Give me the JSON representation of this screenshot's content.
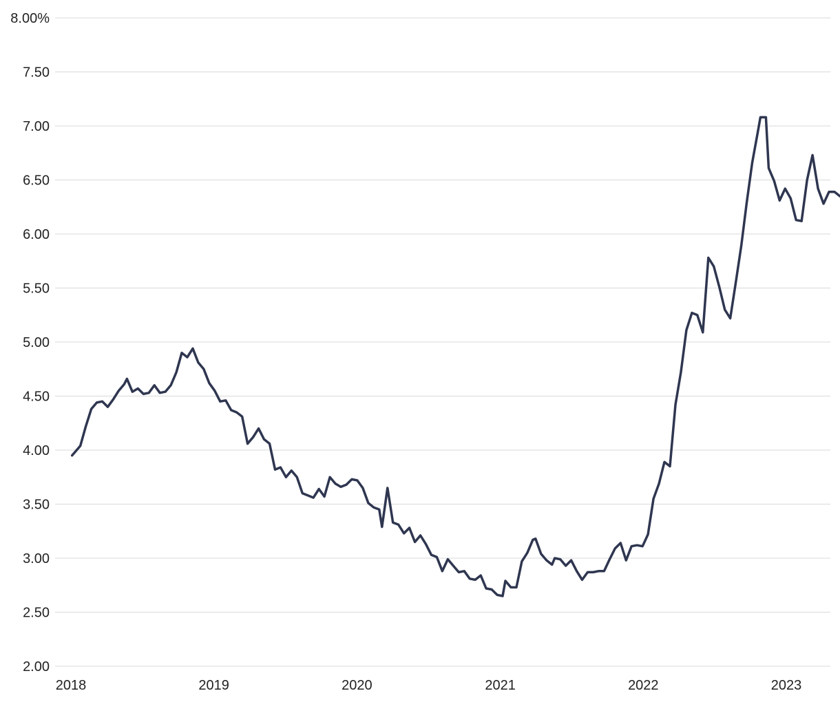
{
  "chart_data": {
    "type": "line",
    "title": "",
    "xlabel": "",
    "ylabel": "",
    "x_axis": {
      "type": "date",
      "range": [
        "2018-01-01",
        "2023-06-01"
      ],
      "ticks": [
        "2018",
        "2019",
        "2020",
        "2021",
        "2022",
        "2023"
      ]
    },
    "y_axis": {
      "range": [
        2.0,
        8.0
      ],
      "ticks": [
        2.0,
        2.5,
        3.0,
        3.5,
        4.0,
        4.5,
        5.0,
        5.5,
        6.0,
        6.5,
        7.0,
        7.5,
        8.0
      ],
      "tick_labels": [
        "2.00",
        "2.50",
        "3.00",
        "3.50",
        "4.00",
        "4.50",
        "5.00",
        "5.50",
        "6.00",
        "6.50",
        "7.00",
        "7.50",
        "8.00%"
      ]
    },
    "grid": "horizontal",
    "legend": "none",
    "series_color": "#2f3650",
    "series": [
      {
        "points": [
          [
            "2018-01-04",
            3.95
          ],
          [
            "2018-01-25",
            4.04
          ],
          [
            "2018-02-08",
            4.22
          ],
          [
            "2018-02-22",
            4.38
          ],
          [
            "2018-03-08",
            4.44
          ],
          [
            "2018-03-22",
            4.45
          ],
          [
            "2018-04-05",
            4.4
          ],
          [
            "2018-04-19",
            4.47
          ],
          [
            "2018-05-03",
            4.55
          ],
          [
            "2018-05-17",
            4.61
          ],
          [
            "2018-05-24",
            4.66
          ],
          [
            "2018-06-07",
            4.54
          ],
          [
            "2018-06-21",
            4.57
          ],
          [
            "2018-07-05",
            4.52
          ],
          [
            "2018-07-19",
            4.53
          ],
          [
            "2018-08-02",
            4.6
          ],
          [
            "2018-08-16",
            4.53
          ],
          [
            "2018-08-30",
            4.54
          ],
          [
            "2018-09-13",
            4.6
          ],
          [
            "2018-09-27",
            4.72
          ],
          [
            "2018-10-11",
            4.9
          ],
          [
            "2018-10-25",
            4.86
          ],
          [
            "2018-11-08",
            4.94
          ],
          [
            "2018-11-22",
            4.81
          ],
          [
            "2018-12-06",
            4.75
          ],
          [
            "2018-12-20",
            4.62
          ],
          [
            "2019-01-03",
            4.55
          ],
          [
            "2019-01-17",
            4.45
          ],
          [
            "2019-01-31",
            4.46
          ],
          [
            "2019-02-14",
            4.37
          ],
          [
            "2019-02-28",
            4.35
          ],
          [
            "2019-03-14",
            4.31
          ],
          [
            "2019-03-28",
            4.06
          ],
          [
            "2019-04-11",
            4.12
          ],
          [
            "2019-04-25",
            4.2
          ],
          [
            "2019-05-09",
            4.1
          ],
          [
            "2019-05-23",
            4.06
          ],
          [
            "2019-06-06",
            3.82
          ],
          [
            "2019-06-20",
            3.84
          ],
          [
            "2019-07-04",
            3.75
          ],
          [
            "2019-07-18",
            3.81
          ],
          [
            "2019-08-01",
            3.75
          ],
          [
            "2019-08-15",
            3.6
          ],
          [
            "2019-08-29",
            3.58
          ],
          [
            "2019-09-12",
            3.56
          ],
          [
            "2019-09-26",
            3.64
          ],
          [
            "2019-10-10",
            3.57
          ],
          [
            "2019-10-24",
            3.75
          ],
          [
            "2019-11-07",
            3.69
          ],
          [
            "2019-11-21",
            3.66
          ],
          [
            "2019-12-05",
            3.68
          ],
          [
            "2019-12-19",
            3.73
          ],
          [
            "2020-01-02",
            3.72
          ],
          [
            "2020-01-16",
            3.65
          ],
          [
            "2020-01-30",
            3.51
          ],
          [
            "2020-02-13",
            3.47
          ],
          [
            "2020-02-27",
            3.45
          ],
          [
            "2020-03-05",
            3.29
          ],
          [
            "2020-03-19",
            3.65
          ],
          [
            "2020-04-02",
            3.33
          ],
          [
            "2020-04-16",
            3.31
          ],
          [
            "2020-04-30",
            3.23
          ],
          [
            "2020-05-14",
            3.28
          ],
          [
            "2020-05-28",
            3.15
          ],
          [
            "2020-06-11",
            3.21
          ],
          [
            "2020-06-25",
            3.13
          ],
          [
            "2020-07-09",
            3.03
          ],
          [
            "2020-07-23",
            3.01
          ],
          [
            "2020-08-06",
            2.88
          ],
          [
            "2020-08-20",
            2.99
          ],
          [
            "2020-09-03",
            2.93
          ],
          [
            "2020-09-17",
            2.87
          ],
          [
            "2020-10-01",
            2.88
          ],
          [
            "2020-10-15",
            2.81
          ],
          [
            "2020-10-29",
            2.8
          ],
          [
            "2020-11-12",
            2.84
          ],
          [
            "2020-11-26",
            2.72
          ],
          [
            "2020-12-10",
            2.71
          ],
          [
            "2020-12-24",
            2.66
          ],
          [
            "2021-01-07",
            2.65
          ],
          [
            "2021-01-14",
            2.79
          ],
          [
            "2021-01-28",
            2.73
          ],
          [
            "2021-02-11",
            2.73
          ],
          [
            "2021-02-25",
            2.97
          ],
          [
            "2021-03-11",
            3.05
          ],
          [
            "2021-03-25",
            3.17
          ],
          [
            "2021-04-01",
            3.18
          ],
          [
            "2021-04-15",
            3.04
          ],
          [
            "2021-04-29",
            2.98
          ],
          [
            "2021-05-13",
            2.94
          ],
          [
            "2021-05-20",
            3.0
          ],
          [
            "2021-06-03",
            2.99
          ],
          [
            "2021-06-17",
            2.93
          ],
          [
            "2021-07-01",
            2.98
          ],
          [
            "2021-07-15",
            2.88
          ],
          [
            "2021-07-29",
            2.8
          ],
          [
            "2021-08-12",
            2.87
          ],
          [
            "2021-08-26",
            2.87
          ],
          [
            "2021-09-09",
            2.88
          ],
          [
            "2021-09-23",
            2.88
          ],
          [
            "2021-10-07",
            2.99
          ],
          [
            "2021-10-21",
            3.09
          ],
          [
            "2021-11-04",
            3.14
          ],
          [
            "2021-11-18",
            2.98
          ],
          [
            "2021-12-02",
            3.11
          ],
          [
            "2021-12-16",
            3.12
          ],
          [
            "2021-12-30",
            3.11
          ],
          [
            "2022-01-13",
            3.22
          ],
          [
            "2022-01-27",
            3.55
          ],
          [
            "2022-02-10",
            3.69
          ],
          [
            "2022-02-24",
            3.89
          ],
          [
            "2022-03-10",
            3.85
          ],
          [
            "2022-03-24",
            4.42
          ],
          [
            "2022-04-07",
            4.72
          ],
          [
            "2022-04-21",
            5.11
          ],
          [
            "2022-05-05",
            5.27
          ],
          [
            "2022-05-19",
            5.25
          ],
          [
            "2022-06-02",
            5.09
          ],
          [
            "2022-06-16",
            5.78
          ],
          [
            "2022-06-30",
            5.7
          ],
          [
            "2022-07-14",
            5.51
          ],
          [
            "2022-07-28",
            5.3
          ],
          [
            "2022-08-11",
            5.22
          ],
          [
            "2022-08-25",
            5.55
          ],
          [
            "2022-09-08",
            5.89
          ],
          [
            "2022-09-22",
            6.29
          ],
          [
            "2022-10-06",
            6.66
          ],
          [
            "2022-10-20",
            6.94
          ],
          [
            "2022-10-27",
            7.08
          ],
          [
            "2022-11-10",
            7.08
          ],
          [
            "2022-11-17",
            6.61
          ],
          [
            "2022-12-01",
            6.49
          ],
          [
            "2022-12-15",
            6.31
          ],
          [
            "2022-12-29",
            6.42
          ],
          [
            "2023-01-12",
            6.33
          ],
          [
            "2023-01-26",
            6.13
          ],
          [
            "2023-02-09",
            6.12
          ],
          [
            "2023-02-23",
            6.5
          ],
          [
            "2023-03-09",
            6.73
          ],
          [
            "2023-03-23",
            6.42
          ],
          [
            "2023-04-06",
            6.28
          ],
          [
            "2023-04-20",
            6.39
          ],
          [
            "2023-05-04",
            6.39
          ],
          [
            "2023-05-18",
            6.35
          ]
        ]
      }
    ]
  }
}
